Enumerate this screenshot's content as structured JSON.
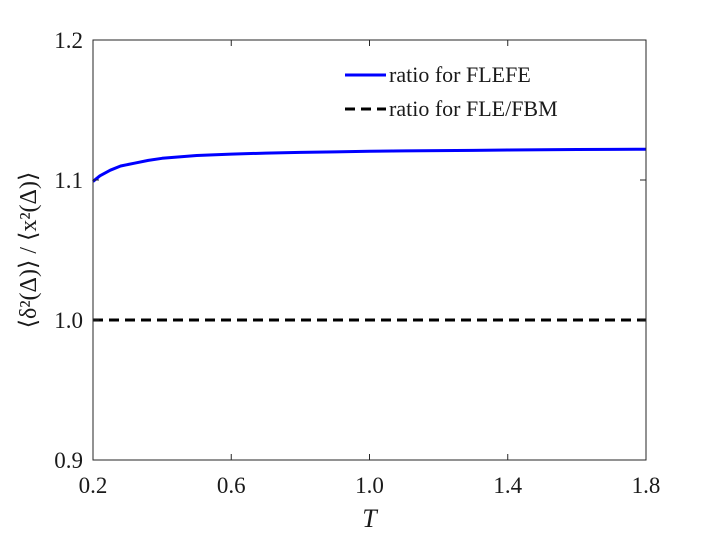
{
  "chart_data": {
    "type": "line",
    "xlabel": "T",
    "ylabel": "⟨δ²(Δ)⟩ / ⟨x²(Δ)⟩",
    "xlim": [
      0.2,
      1.8
    ],
    "ylim": [
      0.9,
      1.2
    ],
    "xticks": [
      0.2,
      0.6,
      1.0,
      1.4,
      1.8
    ],
    "xtick_labels": [
      "0.2",
      "0.6",
      "1.0",
      "1.4",
      "1.8"
    ],
    "yticks": [
      0.9,
      1.0,
      1.1,
      1.2
    ],
    "ytick_labels": [
      "0.9",
      "1.0",
      "1.1",
      "1.2"
    ],
    "grid": false,
    "legend_position": "top-right",
    "series": [
      {
        "name": "ratio for FLEFE",
        "color": "#0000ff",
        "style": "solid",
        "x": [
          0.2,
          0.22,
          0.25,
          0.28,
          0.32,
          0.36,
          0.4,
          0.45,
          0.5,
          0.6,
          0.7,
          0.8,
          0.9,
          1.0,
          1.1,
          1.2,
          1.3,
          1.4,
          1.5,
          1.6,
          1.7,
          1.8
        ],
        "y": [
          1.099,
          1.103,
          1.107,
          1.11,
          1.112,
          1.114,
          1.1155,
          1.1165,
          1.1175,
          1.1185,
          1.1192,
          1.1197,
          1.1201,
          1.1205,
          1.1208,
          1.121,
          1.1212,
          1.1214,
          1.1216,
          1.1218,
          1.1219,
          1.122
        ]
      },
      {
        "name": "ratio for FLE/FBM",
        "color": "#000000",
        "style": "dashed",
        "x": [
          0.2,
          1.8
        ],
        "y": [
          1.0,
          1.0
        ]
      }
    ]
  }
}
